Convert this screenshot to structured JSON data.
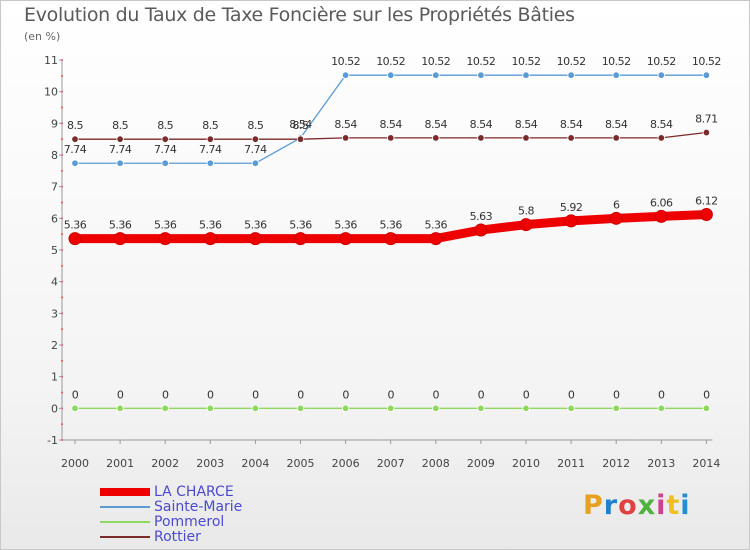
{
  "chart_data": {
    "type": "line",
    "title": "Evolution du Taux de Taxe Foncière sur les Propriétés Bâties",
    "subtitle": "(en %)",
    "x": [
      "2000",
      "2001",
      "2002",
      "2003",
      "2004",
      "2005",
      "2006",
      "2007",
      "2008",
      "2009",
      "2010",
      "2011",
      "2012",
      "2013",
      "2014"
    ],
    "ylim": [
      -1,
      11
    ],
    "yticks": [
      "-1",
      "0",
      "1",
      "2",
      "3",
      "4",
      "5",
      "6",
      "7",
      "8",
      "9",
      "10",
      "11"
    ],
    "grid": false,
    "series": [
      {
        "name": "LA CHARCE",
        "color": "#ee0000",
        "weight": "thick",
        "values": [
          5.36,
          5.36,
          5.36,
          5.36,
          5.36,
          5.36,
          5.36,
          5.36,
          5.36,
          5.63,
          5.8,
          5.92,
          6,
          6.06,
          6.12
        ],
        "labels": [
          "5.36",
          "5.36",
          "5.36",
          "5.36",
          "5.36",
          "5.36",
          "5.36",
          "5.36",
          "5.36",
          "5.63",
          "5.8",
          "5.92",
          "6",
          "6.06",
          "6.12"
        ]
      },
      {
        "name": "Sainte-Marie",
        "color": "#5a9bd5",
        "weight": "thin",
        "values": [
          7.74,
          7.74,
          7.74,
          7.74,
          7.74,
          8.54,
          10.52,
          10.52,
          10.52,
          10.52,
          10.52,
          10.52,
          10.52,
          10.52,
          10.52
        ],
        "labels": [
          "7.74",
          "7.74",
          "7.74",
          "7.74",
          "7.74",
          "8.54",
          "10.52",
          "10.52",
          "10.52",
          "10.52",
          "10.52",
          "10.52",
          "10.52",
          "10.52",
          "10.52"
        ]
      },
      {
        "name": "Pommerol",
        "color": "#8fd860",
        "weight": "thin",
        "values": [
          0,
          0,
          0,
          0,
          0,
          0,
          0,
          0,
          0,
          0,
          0,
          0,
          0,
          0,
          0
        ],
        "labels": [
          "0",
          "0",
          "0",
          "0",
          "0",
          "0",
          "0",
          "0",
          "0",
          "0",
          "0",
          "0",
          "0",
          "0",
          "0"
        ]
      },
      {
        "name": "Rottier",
        "color": "#7a2a2a",
        "weight": "thin",
        "values": [
          8.5,
          8.5,
          8.5,
          8.5,
          8.5,
          8.5,
          8.54,
          8.54,
          8.54,
          8.54,
          8.54,
          8.54,
          8.54,
          8.54,
          8.71
        ],
        "labels": [
          "8.5",
          "8.5",
          "8.5",
          "8.5",
          "8.5",
          "8.5",
          "8.54",
          "8.54",
          "8.54",
          "8.54",
          "8.54",
          "8.54",
          "8.54",
          "8.54",
          "8.71"
        ]
      }
    ],
    "legend": "bottom-left"
  },
  "logo": {
    "text": "Proxiti",
    "colors": [
      "#e8a020",
      "#2080d0",
      "#e04040",
      "#50b040",
      "#d04090",
      "#f0c020",
      "#2090d0"
    ]
  }
}
